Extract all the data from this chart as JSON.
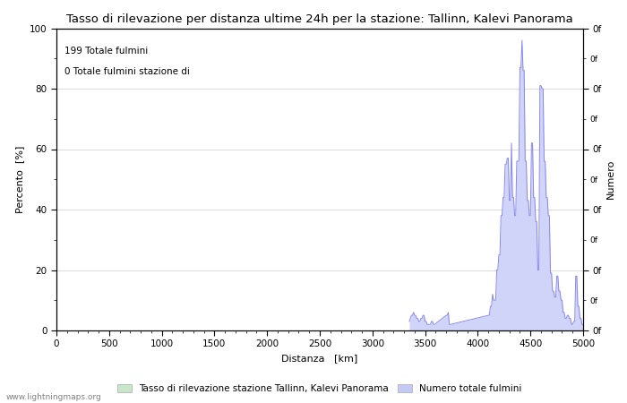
{
  "title": "Tasso di rilevazione per distanza ultime 24h per la stazione: Tallinn, Kalevi Panorama",
  "xlabel": "Distanza   [km]",
  "ylabel_left": "Percento  [%]",
  "ylabel_right": "Numero",
  "annotation_line1": "199 Totale fulmini",
  "annotation_line2": "0 Totale fulmini stazione di",
  "xlim": [
    0,
    5000
  ],
  "ylim": [
    0,
    100
  ],
  "xticks": [
    0,
    500,
    1000,
    1500,
    2000,
    2500,
    3000,
    3500,
    4000,
    4500,
    5000
  ],
  "yticks_left": [
    0,
    20,
    40,
    60,
    80,
    100
  ],
  "yticks_minor_left": [
    10,
    30,
    50,
    70,
    90
  ],
  "legend_label1": "Tasso di rilevazione stazione Tallinn, Kalevi Panorama",
  "legend_label2": "Numero totale fulmini",
  "legend_color1": "#c8e6c9",
  "legend_color2": "#c5caf5",
  "line_color": "#8888ee",
  "fill_color": "#d0d4f8",
  "background_color": "#ffffff",
  "grid_color": "#cccccc",
  "watermark": "www.lightningmaps.org",
  "dist_data": [
    3350,
    3360,
    3370,
    3380,
    3390,
    3400,
    3410,
    3420,
    3430,
    3440,
    3450,
    3460,
    3470,
    3480,
    3490,
    3500,
    3510,
    3520,
    3530,
    3540,
    3550,
    3560,
    3570,
    3580,
    3590,
    3700,
    3710,
    3720,
    3730,
    3740,
    4100,
    4110,
    4120,
    4130,
    4140,
    4150,
    4160,
    4170,
    4180,
    4190,
    4200,
    4210,
    4220,
    4230,
    4240,
    4250,
    4260,
    4270,
    4280,
    4290,
    4300,
    4310,
    4320,
    4330,
    4340,
    4350,
    4360,
    4370,
    4380,
    4390,
    4400,
    4410,
    4420,
    4430,
    4440,
    4450,
    4460,
    4470,
    4480,
    4490,
    4500,
    4510,
    4520,
    4530,
    4540,
    4550,
    4560,
    4570,
    4580,
    4590,
    4600,
    4610,
    4620,
    4630,
    4640,
    4650,
    4660,
    4670,
    4680,
    4690,
    4700,
    4710,
    4720,
    4730,
    4740,
    4750,
    4760,
    4770,
    4780,
    4790,
    4800,
    4810,
    4820,
    4830,
    4840,
    4850,
    4860,
    4870,
    4880,
    4890,
    4900,
    4910,
    4920,
    4930,
    4940,
    4950,
    4960,
    4970,
    4980,
    4990,
    5000
  ],
  "pct_data": [
    3,
    4,
    5,
    5,
    6,
    5,
    5,
    4,
    4,
    3,
    3,
    4,
    4,
    5,
    5,
    3,
    3,
    2,
    2,
    2,
    2,
    3,
    3,
    2,
    2,
    5,
    5,
    6,
    2,
    2,
    5,
    5,
    8,
    8,
    12,
    10,
    10,
    10,
    20,
    20,
    25,
    25,
    38,
    38,
    44,
    44,
    55,
    55,
    57,
    57,
    43,
    43,
    62,
    44,
    44,
    38,
    38,
    56,
    56,
    56,
    87,
    87,
    96,
    86,
    86,
    56,
    56,
    43,
    43,
    38,
    38,
    62,
    62,
    44,
    44,
    36,
    36,
    20,
    20,
    81,
    81,
    80,
    80,
    56,
    56,
    44,
    44,
    38,
    38,
    19,
    19,
    13,
    13,
    11,
    11,
    18,
    18,
    13,
    13,
    10,
    10,
    6,
    6,
    4,
    4,
    5,
    5,
    4,
    4,
    2,
    2,
    3,
    3,
    18,
    18,
    8,
    8,
    4,
    4,
    2,
    2
  ],
  "title_fontsize": 9.5,
  "label_fontsize": 8,
  "tick_fontsize": 7.5,
  "annot_fontsize": 7.5,
  "watermark_fontsize": 6.5
}
